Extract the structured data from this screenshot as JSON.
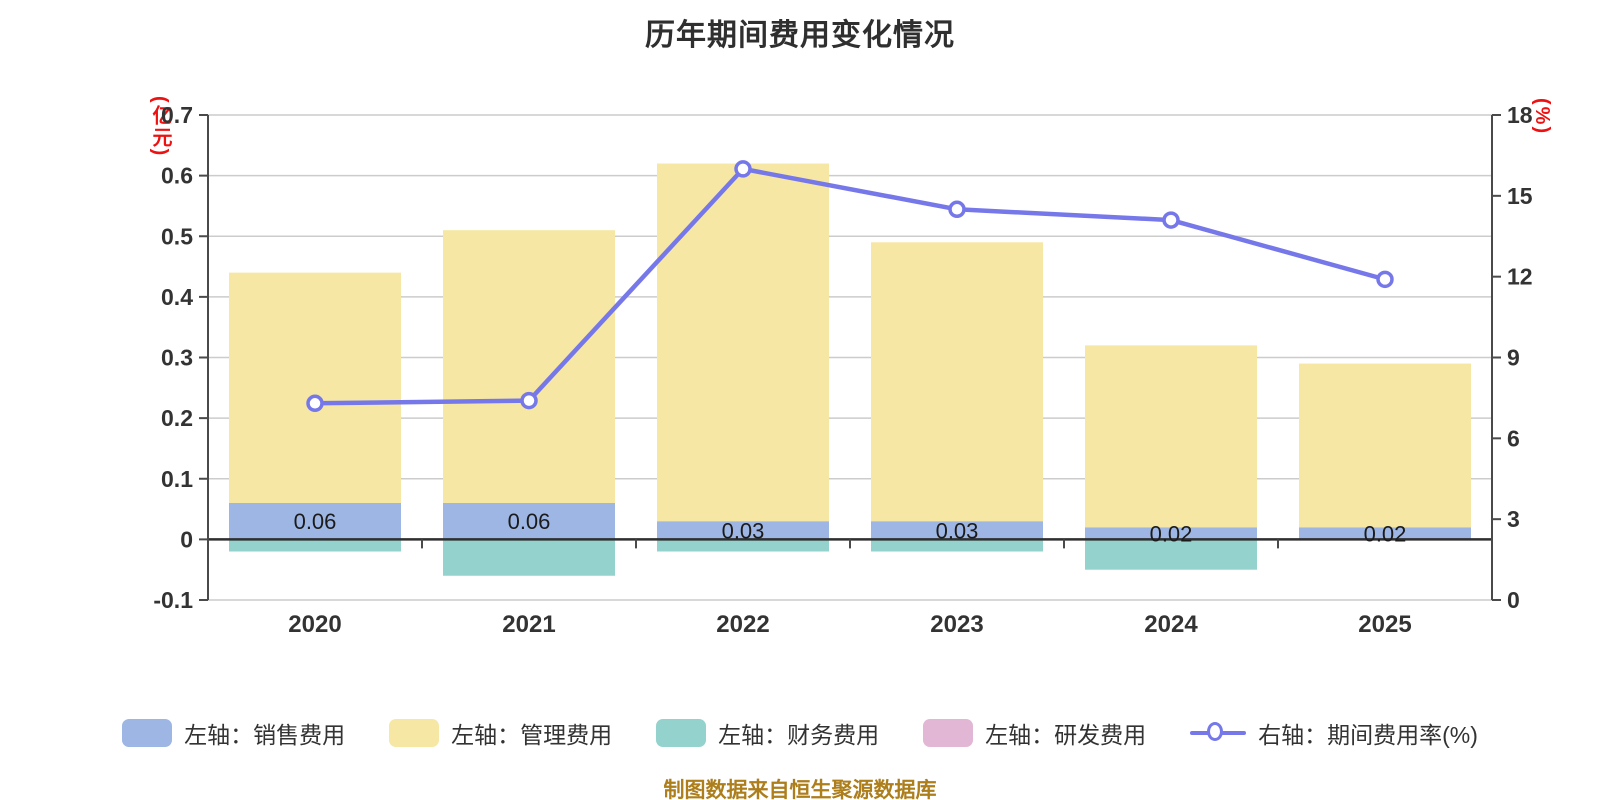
{
  "title": "历年期间费用变化情况",
  "footer": "制图数据来自恒生聚源数据库",
  "legend": {
    "items": [
      {
        "label": "左轴：销售费用",
        "color": "#9db6e3",
        "type": "bar"
      },
      {
        "label": "左轴：管理费用",
        "color": "#f7e7a4",
        "type": "bar"
      },
      {
        "label": "左轴：财务费用",
        "color": "#93d2cd",
        "type": "bar"
      },
      {
        "label": "左轴：研发费用",
        "color": "#e2b6d5",
        "type": "bar"
      },
      {
        "label": "右轴：期间费用率(%)",
        "color": "#7678ea",
        "type": "line"
      }
    ]
  },
  "colors": {
    "grid": "#cccccc",
    "zero_line": "#2f2f2f",
    "spine": "#4a4a4a",
    "tick_text": "#333333",
    "bar_label": "#1b1b1b",
    "axis_unit": "#ee1111",
    "footer": "#ad7e1c",
    "marker_fill": "#ffffff"
  },
  "chart_data": {
    "type": "bar",
    "subtype": "stacked bars with overlay line on secondary axis",
    "title": "历年期间费用变化情况",
    "categories": [
      "2020",
      "2021",
      "2022",
      "2023",
      "2024",
      "2025"
    ],
    "series": [
      {
        "name": "左轴：销售费用",
        "type": "bar",
        "axis": "left",
        "color": "#9db6e3",
        "values": [
          0.06,
          0.06,
          0.03,
          0.03,
          0.02,
          0.02
        ],
        "labels": [
          "0.06",
          "0.06",
          "0.03",
          "0.03",
          "0.02",
          "0.02"
        ]
      },
      {
        "name": "左轴：管理费用",
        "type": "bar",
        "axis": "left",
        "color": "#f7e7a4",
        "values": [
          0.38,
          0.45,
          0.59,
          0.46,
          0.3,
          0.27
        ]
      },
      {
        "name": "左轴：财务费用",
        "type": "bar",
        "axis": "left",
        "color": "#93d2cd",
        "values": [
          -0.02,
          -0.06,
          -0.02,
          -0.02,
          -0.05,
          0.0
        ]
      },
      {
        "name": "左轴：研发费用",
        "type": "bar",
        "axis": "left",
        "color": "#e2b6d5",
        "values": [
          0,
          0,
          0,
          0,
          0,
          0
        ]
      },
      {
        "name": "右轴：期间费用率(%)",
        "type": "line",
        "axis": "right",
        "color": "#7678ea",
        "values": [
          7.3,
          7.4,
          16.0,
          14.5,
          14.1,
          11.9
        ]
      }
    ],
    "left_axis": {
      "label": "(亿元)",
      "min": -0.1,
      "max": 0.7,
      "step": 0.1,
      "ticks": [
        "0.7",
        "0.6",
        "0.5",
        "0.4",
        "0.3",
        "0.2",
        "0.1",
        "0",
        "-0.1"
      ]
    },
    "right_axis": {
      "label": "(%)",
      "min": 0,
      "max": 18,
      "step": 3,
      "ticks": [
        "18",
        "15",
        "12",
        "9",
        "6",
        "3",
        "0"
      ]
    },
    "grid": true,
    "legend_position": "bottom"
  }
}
